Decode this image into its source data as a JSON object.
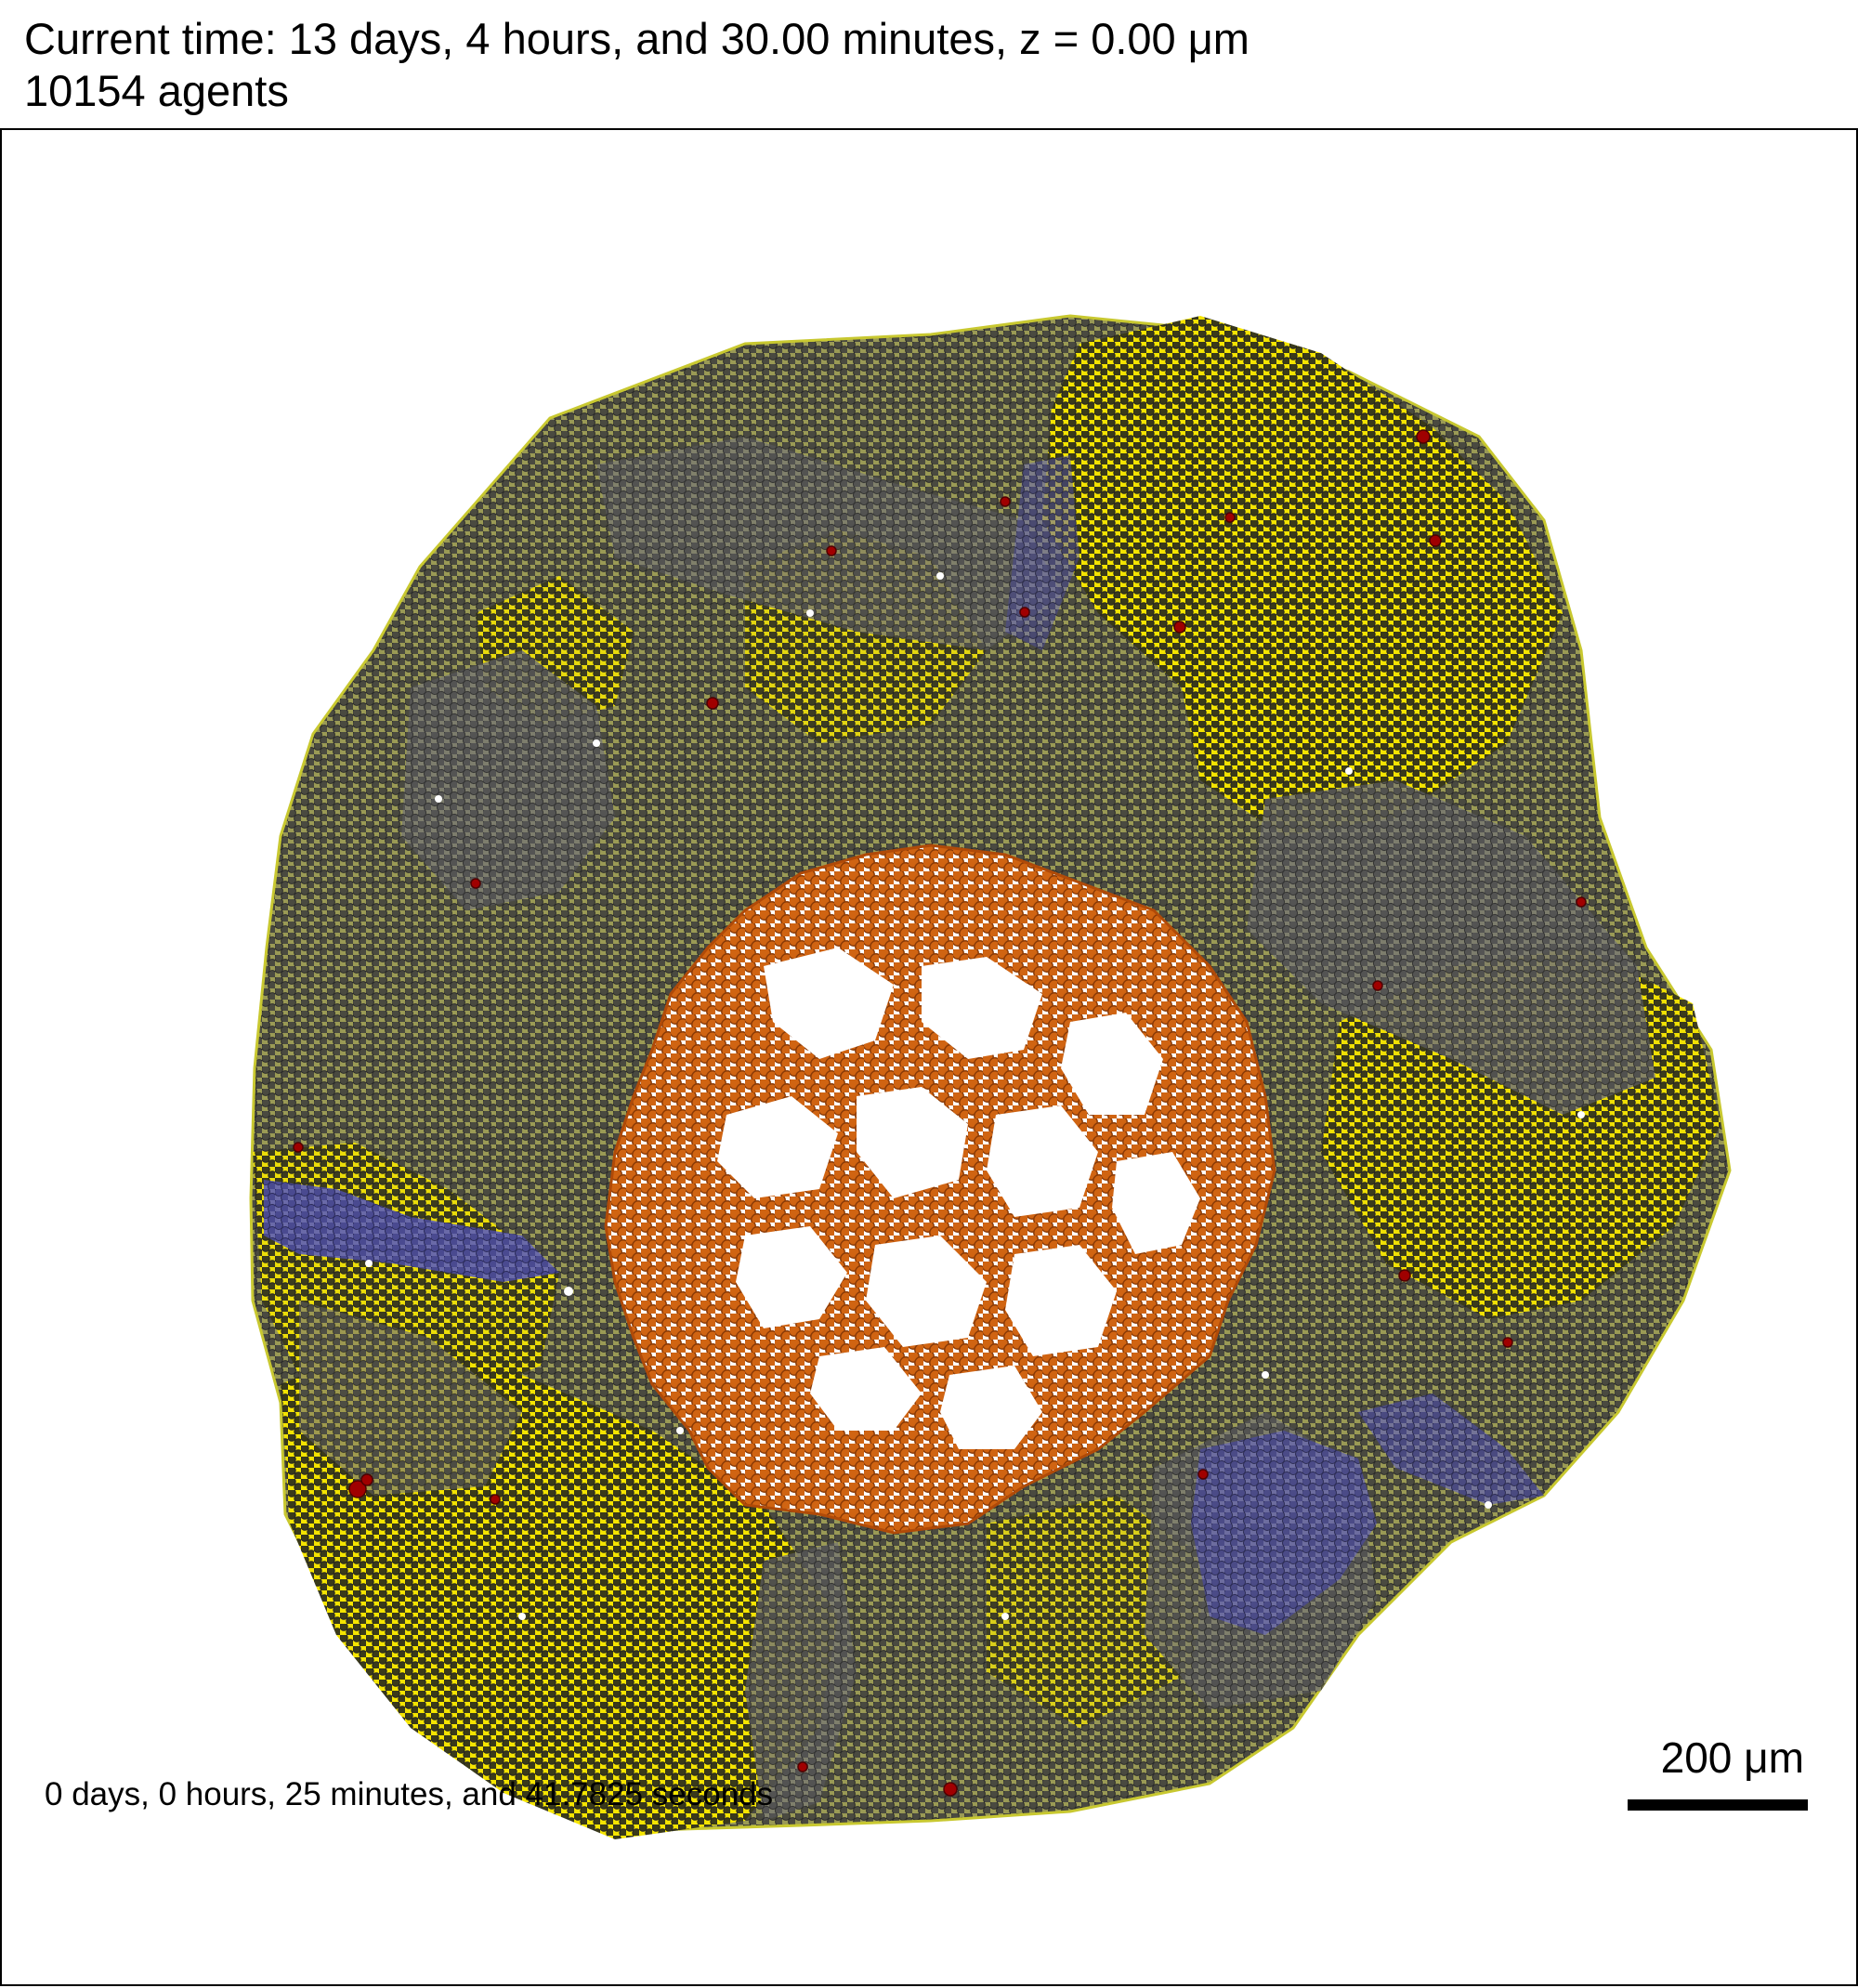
{
  "header": {
    "time_line": "Current time: 13 days, 4 hours, and 30.00 minutes, z = 0.00 μm",
    "agents_line": "10154 agents"
  },
  "footer": {
    "runtime": "0 days, 0 hours, 25 minutes, and 41.7825 seconds",
    "scale_label": "200 μm"
  },
  "colors": {
    "background": "#ffffff",
    "live_yellow": "#ffef00",
    "live_olive": "#8a8a4a",
    "live_gray": "#5e5e5e",
    "quiescent_blue": "#4a4aa0",
    "necrotic_orange": "#cc5a10",
    "apoptotic_red": "#a00000",
    "cell_border": "#333333"
  }
}
